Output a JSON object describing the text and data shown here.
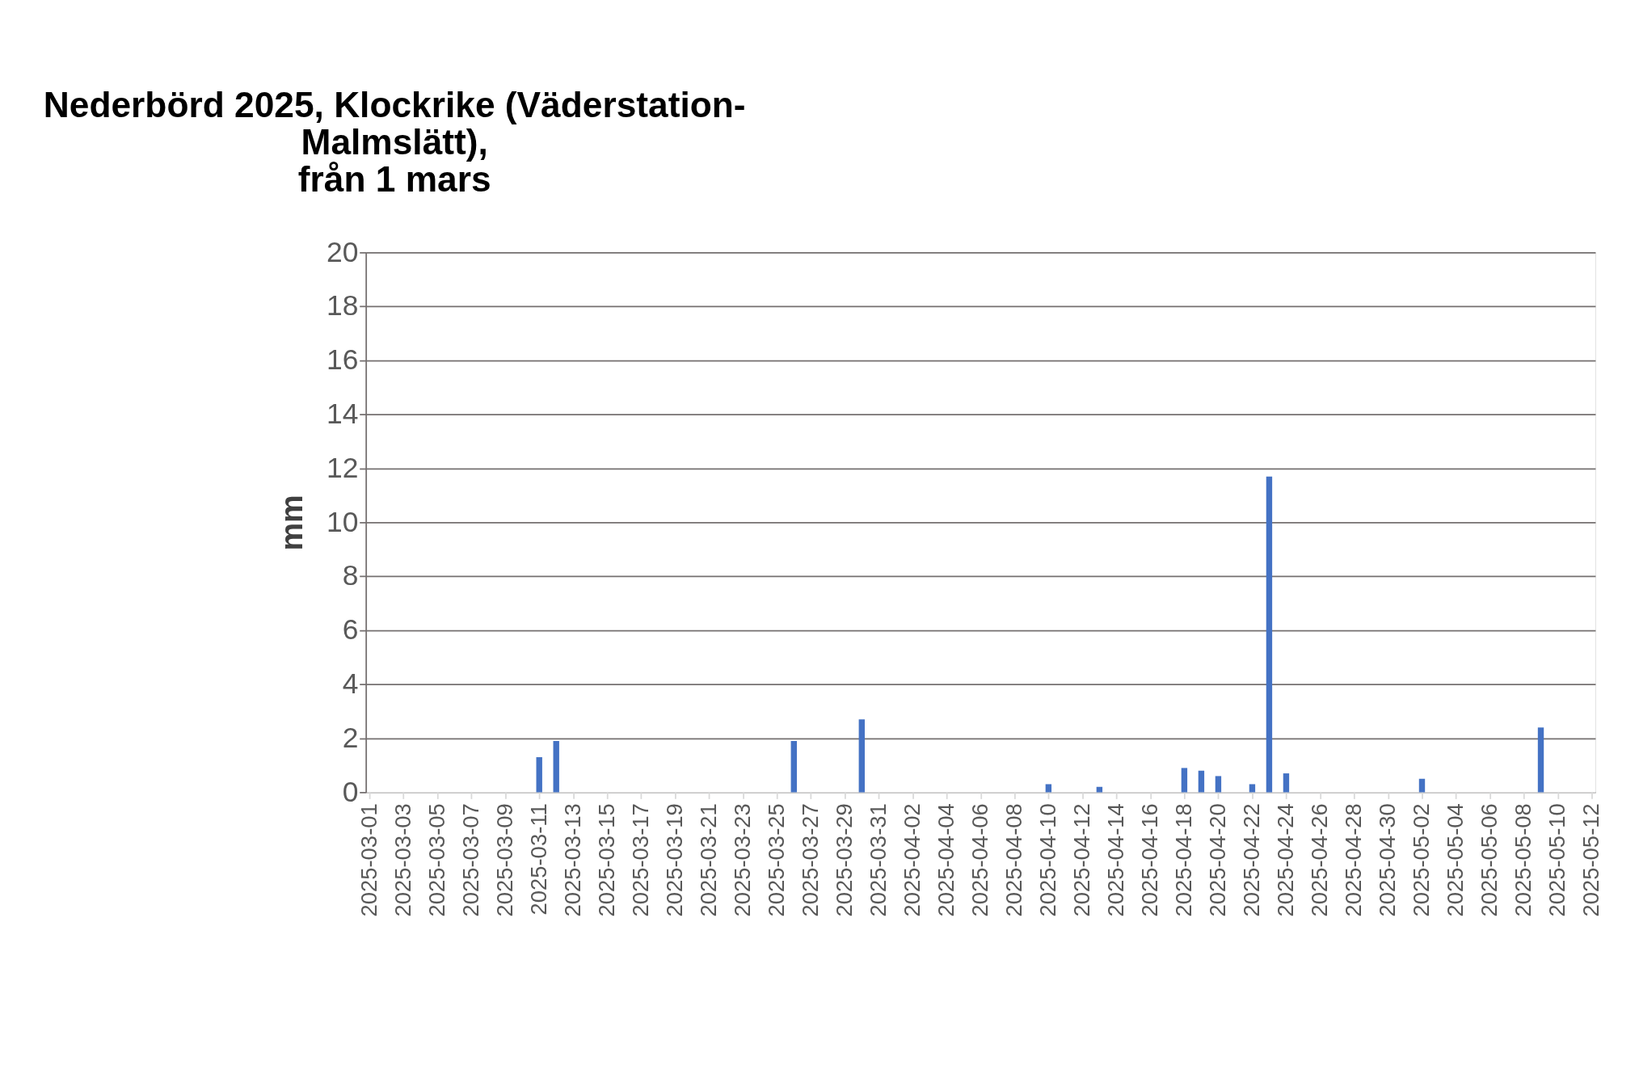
{
  "chart_data": {
    "type": "bar",
    "title": [
      "Nederbörd 2025, Klockrike (Väderstation-",
      "Malmslätt),",
      "från 1 mars"
    ],
    "ylabel": "mm",
    "x": [
      "2025-03-11",
      "2025-03-12",
      "2025-03-26",
      "2025-03-30",
      "2025-04-10",
      "2025-04-13",
      "2025-04-18",
      "2025-04-19",
      "2025-04-20",
      "2025-04-22",
      "2025-04-23",
      "2025-04-24",
      "2025-05-02",
      "2025-05-09"
    ],
    "values": [
      1.3,
      1.9,
      1.9,
      2.7,
      0.3,
      0.2,
      0.9,
      0.8,
      0.6,
      0.3,
      11.7,
      0.7,
      0.5,
      2.4
    ],
    "color": "#4472c4",
    "xlim": [
      "2025-03-01",
      "2025-05-12"
    ],
    "xticks": [
      "2025-03-01",
      "2025-03-03",
      "2025-03-05",
      "2025-03-07",
      "2025-03-09",
      "2025-03-11",
      "2025-03-13",
      "2025-03-15",
      "2025-03-17",
      "2025-03-19",
      "2025-03-21",
      "2025-03-23",
      "2025-03-25",
      "2025-03-27",
      "2025-03-29",
      "2025-03-31",
      "2025-04-02",
      "2025-04-04",
      "2025-04-06",
      "2025-04-08",
      "2025-04-10",
      "2025-04-12",
      "2025-04-14",
      "2025-04-16",
      "2025-04-18",
      "2025-04-20",
      "2025-04-22",
      "2025-04-24",
      "2025-04-26",
      "2025-04-28",
      "2025-04-30",
      "2025-05-02",
      "2025-05-04",
      "2025-05-06",
      "2025-05-08",
      "2025-05-10",
      "2025-05-12"
    ],
    "ylim": [
      0,
      20
    ],
    "yticks": [
      0,
      2,
      4,
      6,
      8,
      10,
      12,
      14,
      16,
      18,
      20
    ],
    "grid": "y"
  }
}
